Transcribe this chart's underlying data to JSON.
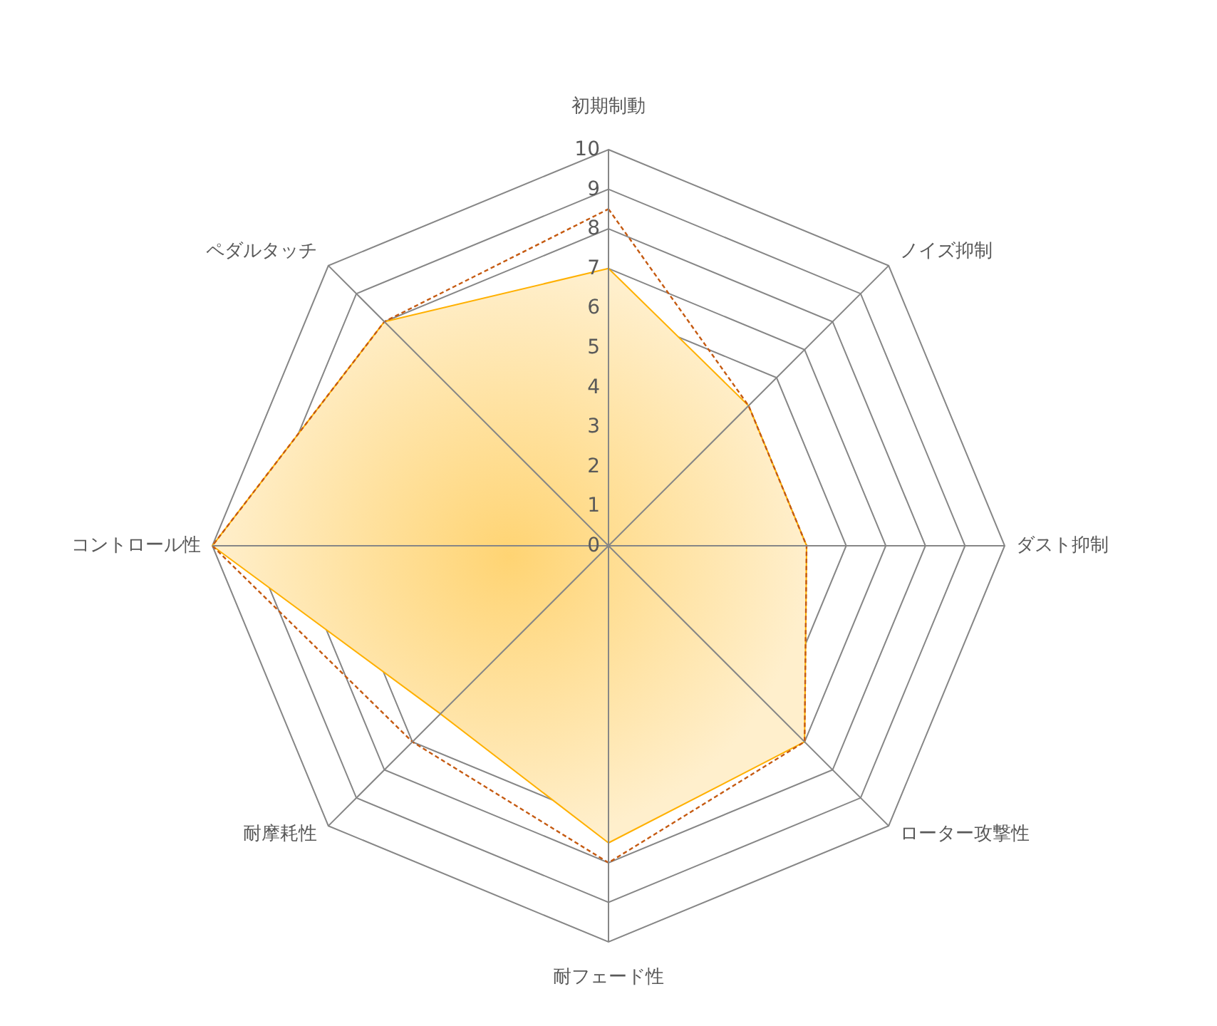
{
  "chart_data": {
    "type": "radar",
    "categories": [
      "初期制動",
      "ノイズ抑制",
      "ダスト抑制",
      "ローター攻撃性",
      "耐フェード性",
      "耐摩耗性",
      "コントロール性",
      "ペダルタッチ"
    ],
    "series": [
      {
        "type": "area",
        "color": "#ffb000",
        "values": [
          7,
          5,
          5,
          7,
          7.5,
          6,
          10,
          8
        ]
      },
      {
        "color": "#c55a11",
        "line_style": "dashed",
        "values": [
          8.5,
          5,
          5,
          7,
          8,
          7,
          10,
          8
        ]
      }
    ],
    "ylim": [
      0,
      10
    ],
    "yticks": [
      0,
      1,
      2,
      3,
      4,
      5,
      6,
      7,
      8,
      9,
      10
    ],
    "grid": true
  }
}
